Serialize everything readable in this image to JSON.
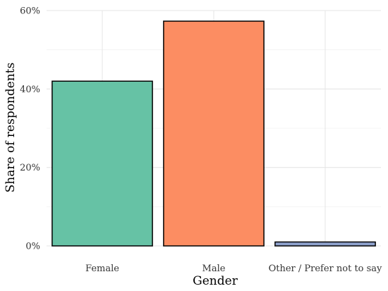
{
  "chart_data": {
    "type": "bar",
    "categories": [
      "Female",
      "Male",
      "Other / Prefer not to say"
    ],
    "values": [
      42,
      57.3,
      1
    ],
    "colors": [
      "#66c2a5",
      "#fc8d62",
      "#8da0cb"
    ],
    "xlabel": "Gender",
    "ylabel": "Share of respondents",
    "ylim": [
      0,
      60
    ],
    "yticks": [
      0,
      20,
      40,
      60
    ],
    "ytick_labels": [
      "0%",
      "20%",
      "40%",
      "60%"
    ],
    "grid": true,
    "legend": "none"
  }
}
